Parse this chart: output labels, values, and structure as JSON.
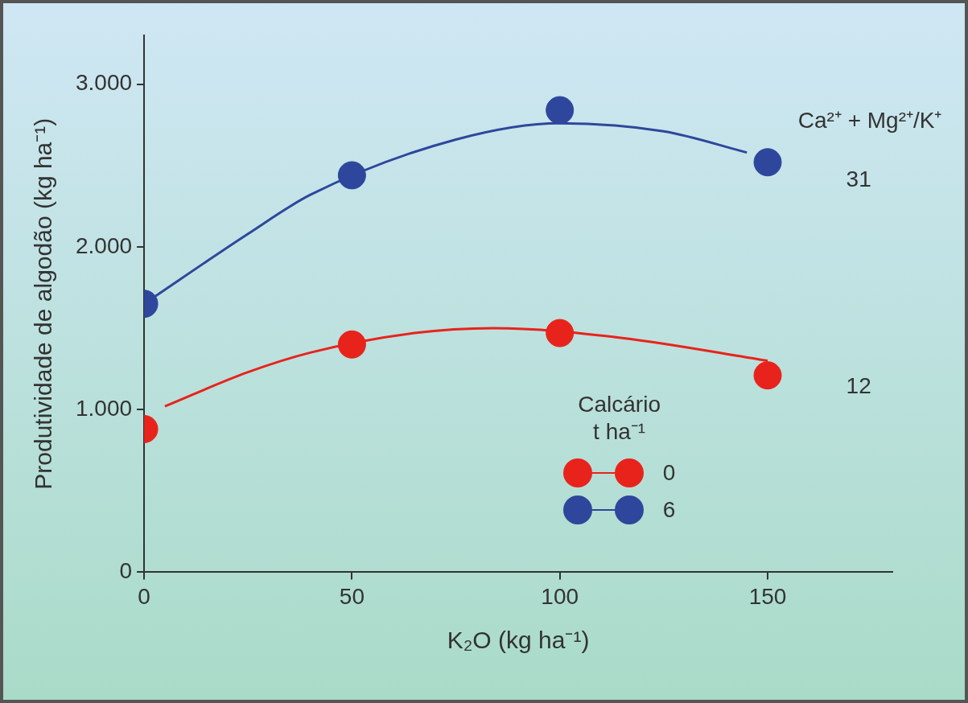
{
  "chart_data": {
    "type": "scatter",
    "xlabel": "K₂O (kg ha⁻¹)",
    "ylabel": "Produtividade de algodão (kg ha⁻¹)",
    "legend_title": "Calcário t ha⁻¹",
    "xlim": [
      0,
      180
    ],
    "xticks": [
      0,
      50,
      100,
      150
    ],
    "ylim": [
      0,
      3300
    ],
    "yticks": [
      0,
      {
        "value": 1000,
        "label": "1.000"
      },
      {
        "value": 2000,
        "label": "2.000"
      },
      {
        "value": 3000,
        "label": "3.000"
      }
    ],
    "grid": false,
    "legend": "bottom right",
    "marker": "circle",
    "series": [
      {
        "name": "0",
        "color": "#e8231c",
        "x": [
          0,
          50,
          100,
          150
        ],
        "values": [
          880,
          1400,
          1470,
          1210
        ]
      },
      {
        "name": "6",
        "color": "#2e479c",
        "x": [
          0,
          50,
          100,
          150
        ],
        "values": [
          1650,
          2440,
          2840,
          2520
        ]
      },
      {
        "type": "line",
        "marker": "none",
        "color": "#e8231c",
        "x": [
          5,
          25,
          40,
          65,
          84,
          115,
          150
        ],
        "values": [
          1020,
          1230,
          1350,
          1470,
          1500,
          1440,
          1300
        ]
      },
      {
        "type": "line",
        "marker": "none",
        "color": "#2e479c",
        "x": [
          0,
          25,
          40,
          75,
          100,
          125,
          145
        ],
        "values": [
          1650,
          2080,
          2320,
          2660,
          2760,
          2710,
          2580
        ]
      }
    ],
    "annotations": [
      "Ca²⁺ + Mg²⁺/K⁺",
      "31",
      "12"
    ]
  }
}
